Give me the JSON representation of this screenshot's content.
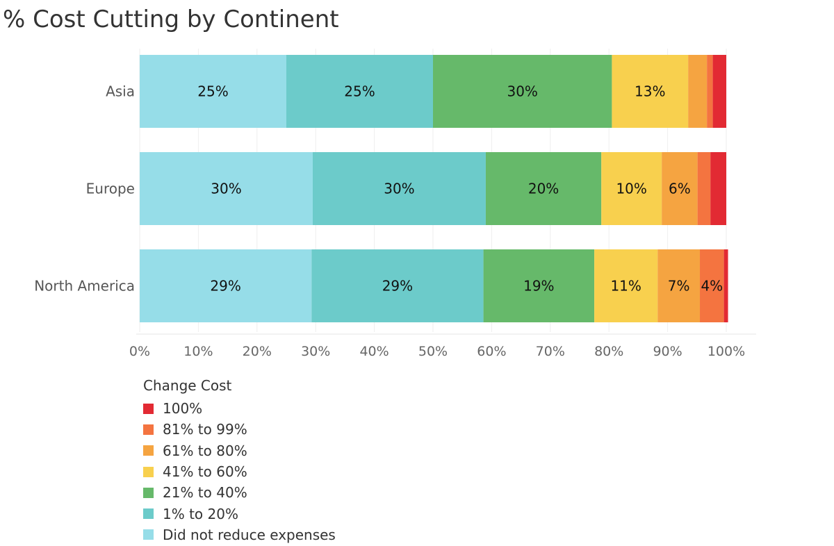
{
  "chart_data": {
    "type": "bar",
    "orientation": "horizontal",
    "stacked": true,
    "title": "% Cost Cutting by Continent",
    "categories": [
      "Asia",
      "Europe",
      "North America"
    ],
    "series": [
      {
        "name": "Did not reduce expenses",
        "color": "#96dde8",
        "values": [
          25,
          29.5,
          29.3
        ]
      },
      {
        "name": "1% to 20%",
        "color": "#6ccbca",
        "values": [
          25,
          29.5,
          29.3
        ]
      },
      {
        "name": "21% to 40%",
        "color": "#66b96a",
        "values": [
          30.5,
          19.7,
          18.9
        ]
      },
      {
        "name": "41% to 60%",
        "color": "#f8d04e",
        "values": [
          13,
          10.3,
          10.8
        ]
      },
      {
        "name": "61% to 80%",
        "color": "#f5a441",
        "values": [
          3.2,
          6.1,
          7.2
        ]
      },
      {
        "name": "81% to 99%",
        "color": "#f47440",
        "values": [
          1,
          2.2,
          4.1
        ]
      },
      {
        "name": "100%",
        "color": "#e22a33",
        "values": [
          2.3,
          2.7,
          0.7
        ]
      }
    ],
    "data_labels": [
      [
        "25%",
        "25%",
        "30%",
        "13%",
        "",
        "",
        ""
      ],
      [
        "30%",
        "30%",
        "20%",
        "10%",
        "6%",
        "",
        ""
      ],
      [
        "29%",
        "29%",
        "19%",
        "11%",
        "7%",
        "4%",
        ""
      ]
    ],
    "xlim": [
      0,
      100
    ],
    "xticks": [
      "0%",
      "10%",
      "20%",
      "30%",
      "40%",
      "50%",
      "60%",
      "70%",
      "80%",
      "90%",
      "100%"
    ],
    "grid": true,
    "legend": {
      "title": "Change Cost",
      "position": "bottom-left",
      "items": [
        "100%",
        "81% to 99%",
        "61% to 80%",
        "41% to 60%",
        "21% to 40%",
        "1% to 20%",
        "Did not reduce expenses"
      ]
    }
  }
}
